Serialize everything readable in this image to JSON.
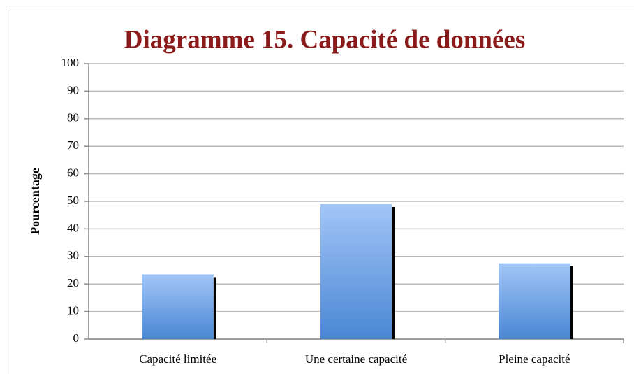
{
  "chart_data": {
    "type": "bar",
    "title": "Diagramme 15. Capacité de données",
    "ylabel": "Pourcentage",
    "categories": [
      "Capacité limitée",
      "Une certaine capacité",
      "Pleine capacité"
    ],
    "values": [
      23.5,
      49,
      27.5
    ],
    "color": "#4a86d4",
    "ylim": [
      0,
      100
    ],
    "yticks": [
      0,
      10,
      20,
      30,
      40,
      50,
      60,
      70,
      80,
      90,
      100
    ],
    "grid": true
  }
}
